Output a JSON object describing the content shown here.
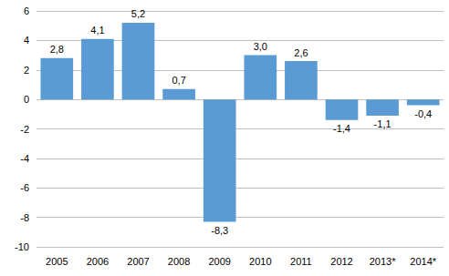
{
  "chart_data": {
    "type": "bar",
    "categories": [
      "2005",
      "2006",
      "2007",
      "2008",
      "2009",
      "2010",
      "2011",
      "2012",
      "2013*",
      "2014*"
    ],
    "values": [
      2.8,
      4.1,
      5.2,
      0.7,
      -8.3,
      3.0,
      2.6,
      -1.4,
      -1.1,
      -0.4
    ],
    "value_labels": [
      "2,8",
      "4,1",
      "5,2",
      "0,7",
      "-8,3",
      "3,0",
      "2,6",
      "-1,4",
      "-1,1",
      "-0,4"
    ],
    "color": "#5b9bd5",
    "ylim": [
      -10,
      6
    ],
    "yticks": [
      -10,
      -8,
      -6,
      -4,
      -2,
      0,
      2,
      4,
      6
    ],
    "grid": true,
    "data_labels": true
  }
}
